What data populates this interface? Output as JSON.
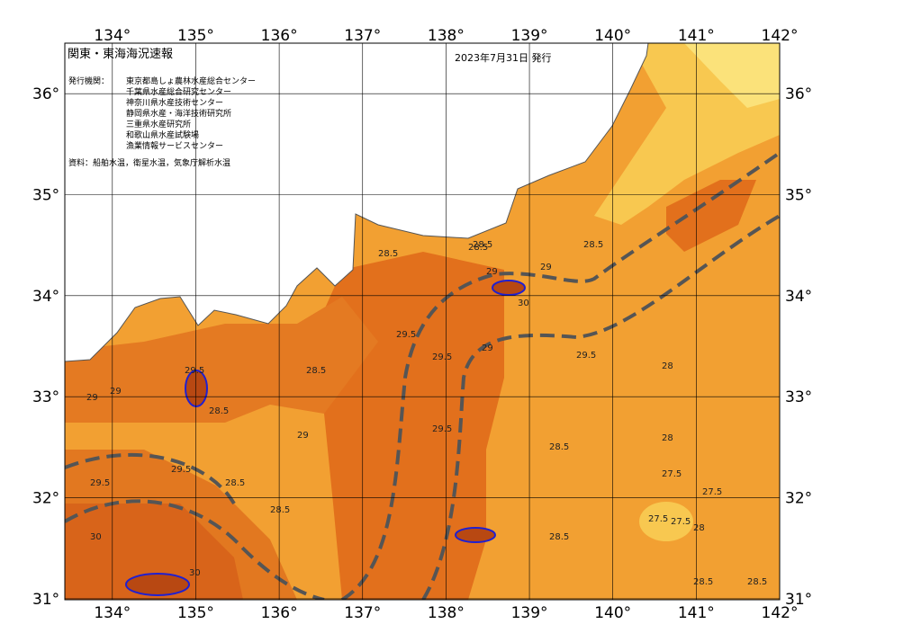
{
  "header": {
    "title": "関東・東海海況速報",
    "date": "2023年7月31日 発行",
    "issuer_label": "発行機関：",
    "issuers": [
      "東京都島しょ農林水産総合センター",
      "千葉県水産総合研究センター",
      "神奈川県水産技術センター",
      "静岡県水産・海洋技術研究所",
      "三重県水産研究所",
      "和歌山県水産試験場",
      "漁業情報サービスセンター"
    ],
    "source": "資料：船舶水温，衛星水温，気象庁解析水温"
  },
  "map": {
    "lon_ticks": [
      {
        "value": 134,
        "label": "134°"
      },
      {
        "value": 135,
        "label": "135°"
      },
      {
        "value": 136,
        "label": "136°"
      },
      {
        "value": 137,
        "label": "137°"
      },
      {
        "value": 138,
        "label": "138°"
      },
      {
        "value": 139,
        "label": "139°"
      },
      {
        "value": 140,
        "label": "140°"
      },
      {
        "value": 141,
        "label": "141°"
      },
      {
        "value": 142,
        "label": "142°"
      }
    ],
    "lat_ticks": [
      {
        "value": 36,
        "label": "36°"
      },
      {
        "value": 35,
        "label": "35°"
      },
      {
        "value": 34,
        "label": "34°"
      },
      {
        "value": 33,
        "label": "33°"
      },
      {
        "value": 32,
        "label": "32°"
      },
      {
        "value": 31,
        "label": "31°"
      }
    ],
    "lon_range": [
      133.43,
      142
    ],
    "lat_range": [
      30.99,
      36.5
    ],
    "contour_labels": [
      "28.5",
      "28.5",
      "28.5",
      "29",
      "29",
      "29",
      "30",
      "29.5",
      "29.5",
      "29.5",
      "29",
      "29.5",
      "28.5",
      "28.5",
      "28",
      "28",
      "27.5",
      "27.5",
      "27.5",
      "28.5",
      "28.5",
      "29.5",
      "30",
      "30",
      "28.5",
      "29.5",
      "28.5",
      "28",
      "28.5",
      "29",
      "28.5",
      "28.5",
      "27.5",
      "29",
      "29.5"
    ]
  }
}
